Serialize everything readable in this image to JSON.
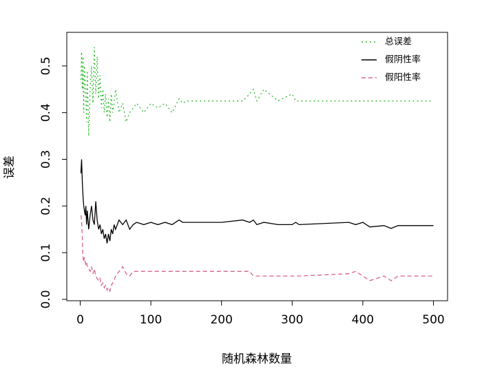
{
  "chart_data": {
    "type": "line",
    "xlabel": "随机森林数量",
    "ylabel": "误差",
    "x": [
      1,
      2,
      3,
      4,
      5,
      6,
      7,
      8,
      9,
      10,
      12,
      14,
      16,
      18,
      20,
      22,
      24,
      26,
      28,
      30,
      32,
      34,
      36,
      38,
      40,
      42,
      44,
      46,
      48,
      50,
      55,
      60,
      65,
      70,
      75,
      80,
      90,
      100,
      110,
      120,
      130,
      140,
      145,
      150,
      200,
      230,
      240,
      245,
      250,
      260,
      280,
      300,
      305,
      310,
      380,
      390,
      400,
      410,
      430,
      440,
      450,
      500
    ],
    "series": [
      {
        "name": "总误差",
        "color": "#2db82d",
        "dash": "dotted",
        "values": [
          0.47,
          0.53,
          0.45,
          0.52,
          0.4,
          0.5,
          0.47,
          0.43,
          0.38,
          0.49,
          0.35,
          0.45,
          0.5,
          0.42,
          0.54,
          0.44,
          0.52,
          0.43,
          0.48,
          0.41,
          0.45,
          0.4,
          0.44,
          0.39,
          0.43,
          0.38,
          0.44,
          0.4,
          0.42,
          0.45,
          0.4,
          0.42,
          0.38,
          0.4,
          0.41,
          0.42,
          0.4,
          0.42,
          0.41,
          0.42,
          0.4,
          0.43,
          0.42,
          0.425,
          0.425,
          0.425,
          0.44,
          0.45,
          0.425,
          0.45,
          0.425,
          0.44,
          0.425,
          0.425,
          0.425,
          0.425,
          0.425,
          0.425,
          0.425,
          0.425,
          0.425,
          0.425
        ]
      },
      {
        "name": "假阴性率",
        "color": "#000000",
        "dash": "solid",
        "values": [
          0.27,
          0.3,
          0.25,
          0.22,
          0.2,
          0.19,
          0.18,
          0.2,
          0.16,
          0.19,
          0.15,
          0.18,
          0.2,
          0.17,
          0.16,
          0.21,
          0.17,
          0.15,
          0.16,
          0.14,
          0.15,
          0.13,
          0.14,
          0.12,
          0.14,
          0.125,
          0.15,
          0.14,
          0.16,
          0.15,
          0.17,
          0.16,
          0.17,
          0.15,
          0.16,
          0.165,
          0.16,
          0.165,
          0.16,
          0.165,
          0.16,
          0.17,
          0.165,
          0.165,
          0.165,
          0.17,
          0.165,
          0.17,
          0.16,
          0.165,
          0.16,
          0.16,
          0.165,
          0.16,
          0.165,
          0.16,
          0.165,
          0.155,
          0.158,
          0.152,
          0.158,
          0.158
        ]
      },
      {
        "name": "假阳性率",
        "color": "#d9608a",
        "dash": "dashed",
        "values": [
          0.18,
          0.17,
          0.13,
          0.09,
          0.08,
          0.09,
          0.08,
          0.075,
          0.08,
          0.07,
          0.065,
          0.06,
          0.07,
          0.055,
          0.065,
          0.05,
          0.045,
          0.04,
          0.045,
          0.03,
          0.035,
          0.025,
          0.03,
          0.02,
          0.025,
          0.018,
          0.03,
          0.035,
          0.04,
          0.05,
          0.06,
          0.07,
          0.055,
          0.05,
          0.06,
          0.06,
          0.06,
          0.06,
          0.06,
          0.06,
          0.06,
          0.06,
          0.06,
          0.06,
          0.06,
          0.06,
          0.06,
          0.05,
          0.05,
          0.05,
          0.05,
          0.05,
          0.05,
          0.05,
          0.055,
          0.06,
          0.05,
          0.04,
          0.05,
          0.04,
          0.05,
          0.05
        ]
      }
    ],
    "xlim": [
      -19,
      520
    ],
    "ylim": [
      -0.003,
      0.572
    ],
    "xticks": [
      0,
      100,
      200,
      300,
      400,
      500
    ],
    "yticks": [
      {
        "value": 0,
        "label": "0.0"
      },
      0.1,
      0.2,
      0.3,
      0.4,
      0.5
    ],
    "legend": "top-right",
    "grid": false
  }
}
